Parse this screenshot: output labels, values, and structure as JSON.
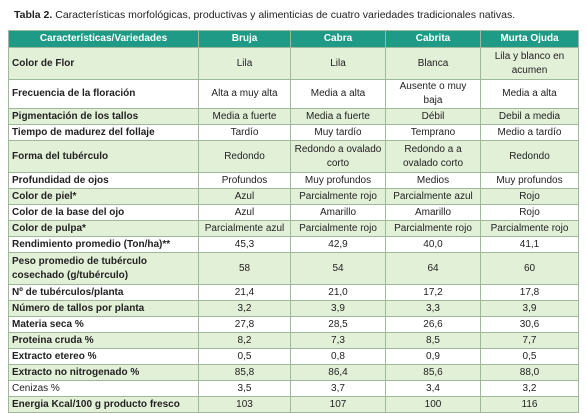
{
  "title": {
    "label": "Tabla 2.",
    "text": "Características morfológicas, productivas y alimenticias de cuatro variedades tradicionales nativas."
  },
  "table": {
    "header": [
      "Características/Variedades",
      "Bruja",
      "Cabra",
      "Cabrita",
      "Murta Ojuda"
    ],
    "rows": [
      [
        "Color de Flor",
        "Lila",
        "Lila",
        "Blanca",
        "Lila y blanco en acumen"
      ],
      [
        "Frecuencia de la floración",
        "Alta a muy alta",
        "Media a alta",
        "Ausente o muy baja",
        "Media a alta"
      ],
      [
        "Pigmentación de los tallos",
        "Media a fuerte",
        "Media a fuerte",
        "Débil",
        "Debil a media"
      ],
      [
        "Tiempo de madurez del follaje",
        "Tardío",
        "Muy tardío",
        "Temprano",
        "Medio a tardío"
      ],
      [
        "Forma del tubérculo",
        "Redondo",
        "Redondo a ovalado corto",
        "Redondo a a ovalado corto",
        "Redondo"
      ],
      [
        "Profundidad de ojos",
        "Profundos",
        "Muy profundos",
        "Medios",
        "Muy profundos"
      ],
      [
        "Color de piel*",
        "Azul",
        "Parcialmente rojo",
        "Parcialmente azul",
        "Rojo"
      ],
      [
        "Color de la base del ojo",
        "Azul",
        "Amarillo",
        "Amarillo",
        "Rojo"
      ],
      [
        "Color de pulpa*",
        "Parcialmente azul",
        "Parcialmente rojo",
        "Parcialmente rojo",
        "Parcialmente rojo"
      ],
      [
        "Rendimiento promedio (Ton/ha)**",
        "45,3",
        "42,9",
        "40,0",
        "41,1"
      ],
      [
        "Peso promedio de tubérculo cosechado (g/tubérculo)",
        "58",
        "54",
        "64",
        "60"
      ],
      [
        "Nº de tubérculos/planta",
        "21,4",
        "21,0",
        "17,2",
        "17,8"
      ],
      [
        "Número de tallos por planta",
        "3,2",
        "3,9",
        "3,3",
        "3,9"
      ],
      [
        "Materia seca %",
        "27,8",
        "28,5",
        "26,6",
        "30,6"
      ],
      [
        "Proteina cruda %",
        "8,2",
        "7,3",
        "8,5",
        "7,7"
      ],
      [
        "Extracto etereo %",
        "0,5",
        "0,8",
        "0,9",
        "0,5"
      ],
      [
        "Extracto no nitrogenado %",
        "85,8",
        "86,4",
        "85,6",
        "88,0"
      ],
      [
        "Cenizas %",
        "3,5",
        "3,7",
        "3,4",
        "3,2"
      ],
      [
        "Energia Kcal/100 g producto fresco",
        "103",
        "107",
        "100",
        "116"
      ]
    ]
  }
}
